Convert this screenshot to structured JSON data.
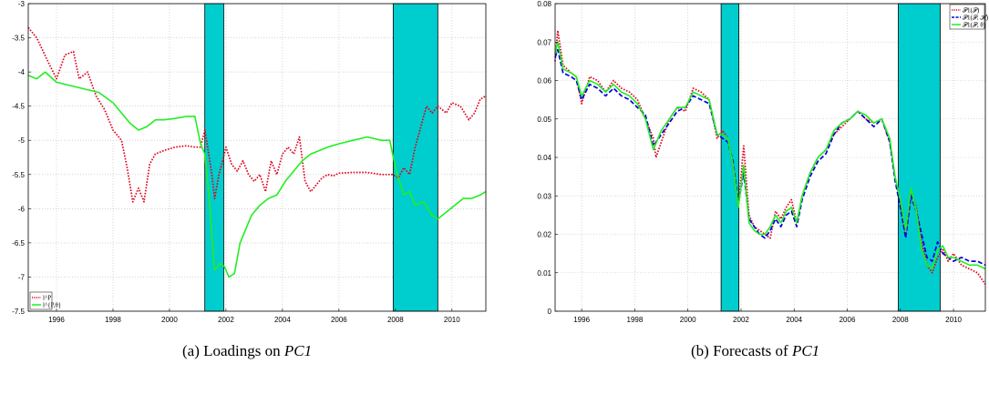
{
  "figure": {
    "caption_a": "(a)  Loadings on ",
    "caption_a_var": "PC1",
    "caption_b": "(b)  Forecasts of ",
    "caption_b_var": "PC1"
  },
  "colors": {
    "band": "#00CDCD",
    "red": "#E0001B",
    "green": "#22EE22",
    "blue": "#0000DD",
    "grid": "#BBBBBB"
  },
  "chart_data": [
    {
      "type": "line",
      "xlim": [
        1995.0,
        2011.2
      ],
      "ylim": [
        -7.5,
        -3.0
      ],
      "xticks": [
        1996,
        1998,
        2000,
        2002,
        2004,
        2006,
        2008,
        2010
      ],
      "yticks": [
        -7.5,
        -7,
        -6.5,
        -6,
        -5.5,
        -5,
        -4.5,
        -4,
        -3.5,
        -3
      ],
      "grid": true,
      "legend_position": "bottom-left",
      "shaded_periods": [
        [
          2001.25,
          2001.92
        ],
        [
          2007.92,
          2009.5
        ]
      ],
      "series": [
        {
          "name": "l^P",
          "style": "dotted",
          "color": "red",
          "x": [
            1995.0,
            1995.3,
            1995.7,
            1996.0,
            1996.3,
            1996.6,
            1996.8,
            1997.1,
            1997.4,
            1997.7,
            1998.0,
            1998.3,
            1998.5,
            1998.7,
            1998.9,
            1999.1,
            1999.3,
            1999.5,
            1999.8,
            2000.2,
            2000.6,
            2000.9,
            2001.1,
            2001.25,
            2001.35,
            2001.5,
            2001.6,
            2001.75,
            2001.85,
            2002.0,
            2002.2,
            2002.4,
            2002.6,
            2002.8,
            2003.0,
            2003.2,
            2003.4,
            2003.6,
            2003.8,
            2004.0,
            2004.2,
            2004.4,
            2004.6,
            2004.8,
            2005.0,
            2005.2,
            2005.4,
            2005.6,
            2005.8,
            2006.0,
            2006.5,
            2007.0,
            2007.5,
            2007.9,
            2008.1,
            2008.3,
            2008.5,
            2008.7,
            2008.9,
            2009.1,
            2009.3,
            2009.5,
            2009.8,
            2010.0,
            2010.3,
            2010.6,
            2010.8,
            2011.0,
            2011.2
          ],
          "y": [
            -3.35,
            -3.5,
            -3.85,
            -4.1,
            -3.75,
            -3.7,
            -4.1,
            -4.0,
            -4.35,
            -4.55,
            -4.85,
            -5.0,
            -5.4,
            -5.9,
            -5.7,
            -5.9,
            -5.35,
            -5.2,
            -5.15,
            -5.1,
            -5.08,
            -5.1,
            -5.1,
            -4.85,
            -5.1,
            -5.5,
            -5.85,
            -5.5,
            -5.35,
            -5.1,
            -5.35,
            -5.45,
            -5.3,
            -5.5,
            -5.6,
            -5.5,
            -5.75,
            -5.3,
            -5.5,
            -5.2,
            -5.1,
            -5.2,
            -4.95,
            -5.6,
            -5.75,
            -5.65,
            -5.55,
            -5.5,
            -5.52,
            -5.48,
            -5.47,
            -5.47,
            -5.5,
            -5.5,
            -5.55,
            -5.4,
            -5.5,
            -5.1,
            -4.8,
            -4.5,
            -4.6,
            -4.5,
            -4.6,
            -4.45,
            -4.5,
            -4.7,
            -4.6,
            -4.4,
            -4.35
          ]
        },
        {
          "name": "l^{P,θ}",
          "style": "solid",
          "color": "green",
          "x": [
            1995.0,
            1995.3,
            1995.6,
            1996.0,
            1996.5,
            1997.0,
            1997.5,
            1998.0,
            1998.3,
            1998.6,
            1998.9,
            1999.2,
            1999.5,
            1999.8,
            2000.2,
            2000.6,
            2000.9,
            2001.1,
            2001.25,
            2001.4,
            2001.5,
            2001.6,
            2001.8,
            2001.95,
            2002.1,
            2002.3,
            2002.5,
            2002.7,
            2002.9,
            2003.2,
            2003.5,
            2003.8,
            2004.1,
            2004.4,
            2004.7,
            2005.0,
            2005.3,
            2005.6,
            2006.0,
            2006.5,
            2007.0,
            2007.5,
            2007.8,
            2007.95,
            2008.1,
            2008.3,
            2008.5,
            2008.7,
            2009.0,
            2009.3,
            2009.5,
            2009.8,
            2010.1,
            2010.4,
            2010.7,
            2011.0,
            2011.2
          ],
          "y": [
            -4.05,
            -4.1,
            -4.0,
            -4.15,
            -4.2,
            -4.25,
            -4.3,
            -4.45,
            -4.6,
            -4.75,
            -4.85,
            -4.8,
            -4.7,
            -4.7,
            -4.68,
            -4.65,
            -4.65,
            -5.05,
            -5.2,
            -5.8,
            -6.4,
            -6.9,
            -6.8,
            -6.85,
            -7.0,
            -6.95,
            -6.5,
            -6.3,
            -6.1,
            -5.95,
            -5.85,
            -5.8,
            -5.6,
            -5.45,
            -5.3,
            -5.2,
            -5.15,
            -5.1,
            -5.05,
            -5.0,
            -4.95,
            -5.0,
            -5.0,
            -5.3,
            -5.55,
            -5.8,
            -5.75,
            -5.95,
            -5.9,
            -6.1,
            -6.15,
            -6.05,
            -5.95,
            -5.85,
            -5.85,
            -5.8,
            -5.75
          ]
        }
      ]
    },
    {
      "type": "line",
      "xlim": [
        1995.0,
        2011.2
      ],
      "ylim": [
        0,
        0.08
      ],
      "xticks": [
        1996,
        1998,
        2000,
        2002,
        2004,
        2006,
        2008,
        2010
      ],
      "yticks": [
        0,
        0.01,
        0.02,
        0.03,
        0.04,
        0.05,
        0.06,
        0.07,
        0.08
      ],
      "grid": true,
      "legend_position": "top-right",
      "shaded_periods": [
        [
          2001.25,
          2001.92
        ],
        [
          2007.92,
          2009.5
        ]
      ],
      "series": [
        {
          "name": "𝒫1(𝒫)",
          "style": "dotted",
          "color": "red",
          "x": [
            1995.0,
            1995.1,
            1995.3,
            1995.6,
            1995.8,
            1996.0,
            1996.3,
            1996.6,
            1996.9,
            1997.2,
            1997.5,
            1997.8,
            1998.1,
            1998.4,
            1998.7,
            1998.8,
            1999.0,
            1999.3,
            1999.6,
            1999.9,
            2000.2,
            2000.5,
            2000.8,
            2001.1,
            2001.3,
            2001.5,
            2001.7,
            2001.9,
            2002.1,
            2002.3,
            2002.5,
            2002.7,
            2002.9,
            2003.1,
            2003.3,
            2003.5,
            2003.7,
            2003.9,
            2004.1,
            2004.3,
            2004.6,
            2004.9,
            2005.2,
            2005.5,
            2005.8,
            2006.1,
            2006.4,
            2006.7,
            2007.0,
            2007.3,
            2007.6,
            2007.8,
            2008.0,
            2008.2,
            2008.4,
            2008.6,
            2008.8,
            2009.0,
            2009.2,
            2009.4,
            2009.6,
            2009.8,
            2010.0,
            2010.3,
            2010.6,
            2010.9,
            2011.2
          ],
          "y": [
            0.065,
            0.073,
            0.064,
            0.062,
            0.061,
            0.054,
            0.061,
            0.06,
            0.057,
            0.06,
            0.058,
            0.057,
            0.055,
            0.05,
            0.045,
            0.04,
            0.044,
            0.05,
            0.053,
            0.052,
            0.058,
            0.057,
            0.055,
            0.045,
            0.047,
            0.045,
            0.038,
            0.027,
            0.043,
            0.025,
            0.022,
            0.021,
            0.02,
            0.019,
            0.026,
            0.024,
            0.027,
            0.029,
            0.023,
            0.03,
            0.036,
            0.04,
            0.042,
            0.046,
            0.048,
            0.05,
            0.052,
            0.05,
            0.049,
            0.05,
            0.044,
            0.035,
            0.028,
            0.02,
            0.031,
            0.027,
            0.018,
            0.012,
            0.01,
            0.014,
            0.016,
            0.013,
            0.015,
            0.012,
            0.011,
            0.01,
            0.007
          ]
        },
        {
          "name": "𝒫1(𝒫, ℋ)",
          "style": "dashed",
          "color": "blue",
          "x": [
            1995.0,
            1995.1,
            1995.3,
            1995.6,
            1995.8,
            1996.0,
            1996.3,
            1996.6,
            1996.9,
            1997.2,
            1997.5,
            1997.8,
            1998.1,
            1998.4,
            1998.7,
            1999.0,
            1999.3,
            1999.6,
            1999.9,
            2000.2,
            2000.5,
            2000.8,
            2001.1,
            2001.3,
            2001.5,
            2001.7,
            2001.9,
            2002.1,
            2002.3,
            2002.5,
            2002.7,
            2002.9,
            2003.1,
            2003.3,
            2003.5,
            2003.7,
            2003.9,
            2004.1,
            2004.3,
            2004.6,
            2004.9,
            2005.2,
            2005.5,
            2005.8,
            2006.1,
            2006.4,
            2006.7,
            2007.0,
            2007.3,
            2007.6,
            2007.8,
            2008.0,
            2008.2,
            2008.4,
            2008.6,
            2008.8,
            2009.0,
            2009.2,
            2009.4,
            2009.6,
            2009.8,
            2010.0,
            2010.3,
            2010.6,
            2010.9,
            2011.2
          ],
          "y": [
            0.066,
            0.068,
            0.062,
            0.061,
            0.06,
            0.055,
            0.059,
            0.058,
            0.056,
            0.058,
            0.056,
            0.055,
            0.053,
            0.051,
            0.043,
            0.046,
            0.049,
            0.052,
            0.053,
            0.056,
            0.055,
            0.054,
            0.046,
            0.045,
            0.044,
            0.039,
            0.028,
            0.036,
            0.024,
            0.022,
            0.02,
            0.019,
            0.021,
            0.024,
            0.022,
            0.025,
            0.026,
            0.022,
            0.029,
            0.035,
            0.039,
            0.041,
            0.046,
            0.049,
            0.05,
            0.052,
            0.05,
            0.048,
            0.05,
            0.044,
            0.034,
            0.027,
            0.019,
            0.03,
            0.026,
            0.02,
            0.014,
            0.013,
            0.018,
            0.015,
            0.014,
            0.013,
            0.014,
            0.013,
            0.013,
            0.012
          ]
        },
        {
          "name": "𝒫1(𝒫, θ)",
          "style": "solid",
          "color": "green",
          "x": [
            1995.0,
            1995.1,
            1995.3,
            1995.6,
            1995.8,
            1996.0,
            1996.3,
            1996.6,
            1996.9,
            1997.2,
            1997.5,
            1997.8,
            1998.1,
            1998.4,
            1998.7,
            1999.0,
            1999.3,
            1999.6,
            1999.9,
            2000.2,
            2000.5,
            2000.8,
            2001.1,
            2001.3,
            2001.5,
            2001.7,
            2001.9,
            2002.1,
            2002.3,
            2002.5,
            2002.7,
            2002.9,
            2003.1,
            2003.3,
            2003.5,
            2003.7,
            2003.9,
            2004.1,
            2004.3,
            2004.6,
            2004.9,
            2005.2,
            2005.5,
            2005.8,
            2006.1,
            2006.4,
            2006.7,
            2007.0,
            2007.3,
            2007.6,
            2007.8,
            2008.0,
            2008.2,
            2008.4,
            2008.6,
            2008.8,
            2009.0,
            2009.2,
            2009.4,
            2009.6,
            2009.8,
            2010.0,
            2010.3,
            2010.6,
            2010.9,
            2011.2
          ],
          "y": [
            0.067,
            0.07,
            0.063,
            0.062,
            0.061,
            0.056,
            0.06,
            0.059,
            0.057,
            0.059,
            0.057,
            0.056,
            0.054,
            0.05,
            0.042,
            0.047,
            0.05,
            0.053,
            0.053,
            0.057,
            0.056,
            0.055,
            0.046,
            0.046,
            0.045,
            0.038,
            0.027,
            0.038,
            0.023,
            0.021,
            0.02,
            0.02,
            0.022,
            0.025,
            0.023,
            0.026,
            0.027,
            0.023,
            0.03,
            0.036,
            0.04,
            0.042,
            0.047,
            0.049,
            0.05,
            0.052,
            0.051,
            0.049,
            0.05,
            0.045,
            0.035,
            0.029,
            0.021,
            0.032,
            0.026,
            0.016,
            0.012,
            0.011,
            0.016,
            0.017,
            0.014,
            0.014,
            0.013,
            0.012,
            0.012,
            0.011
          ]
        }
      ]
    }
  ]
}
